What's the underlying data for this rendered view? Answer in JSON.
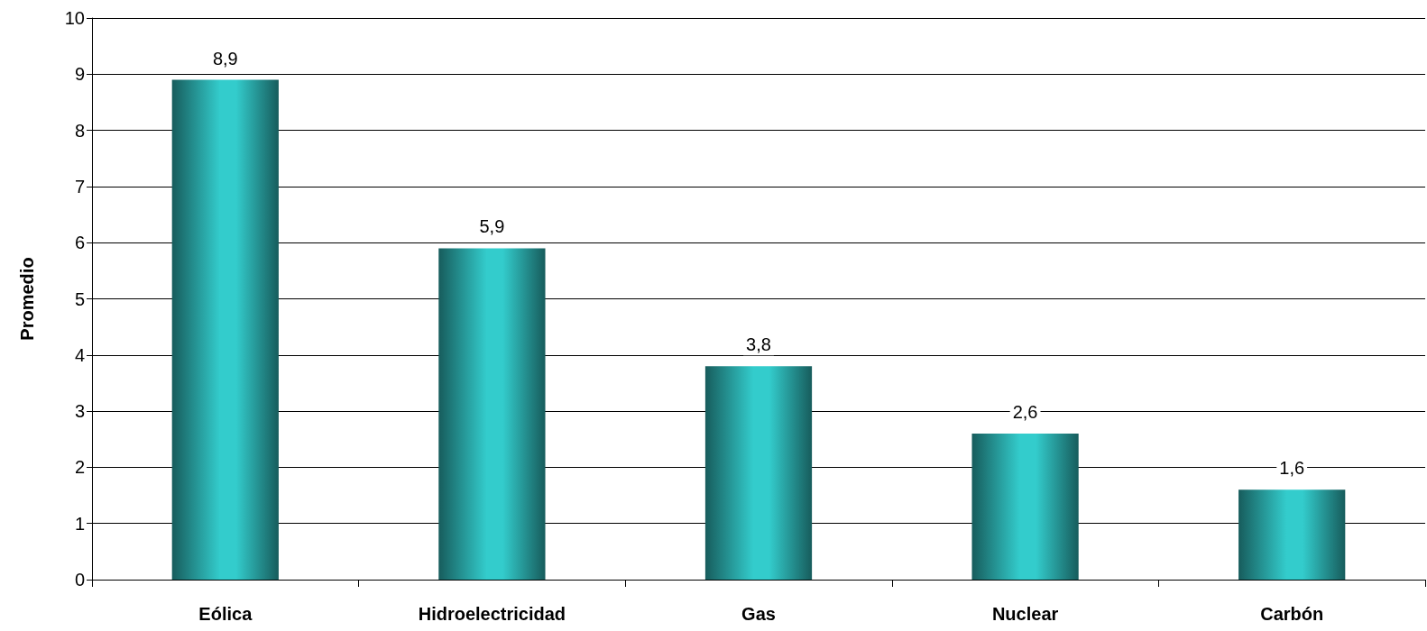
{
  "chart_data": {
    "type": "bar",
    "ylabel": "Promedio",
    "categories": [
      "Eólica",
      "Hidroelectricidad",
      "Gas",
      "Nuclear",
      "Carbón"
    ],
    "values": [
      8.9,
      5.9,
      3.8,
      2.6,
      1.6
    ],
    "value_labels": [
      "8,9",
      "5,9",
      "3,8",
      "2,6",
      "1,6"
    ],
    "color": "#33cccc",
    "ylim": [
      0,
      10
    ],
    "yticks": [
      0,
      1,
      2,
      3,
      4,
      5,
      6,
      7,
      8,
      9,
      10
    ],
    "grid": "y"
  }
}
